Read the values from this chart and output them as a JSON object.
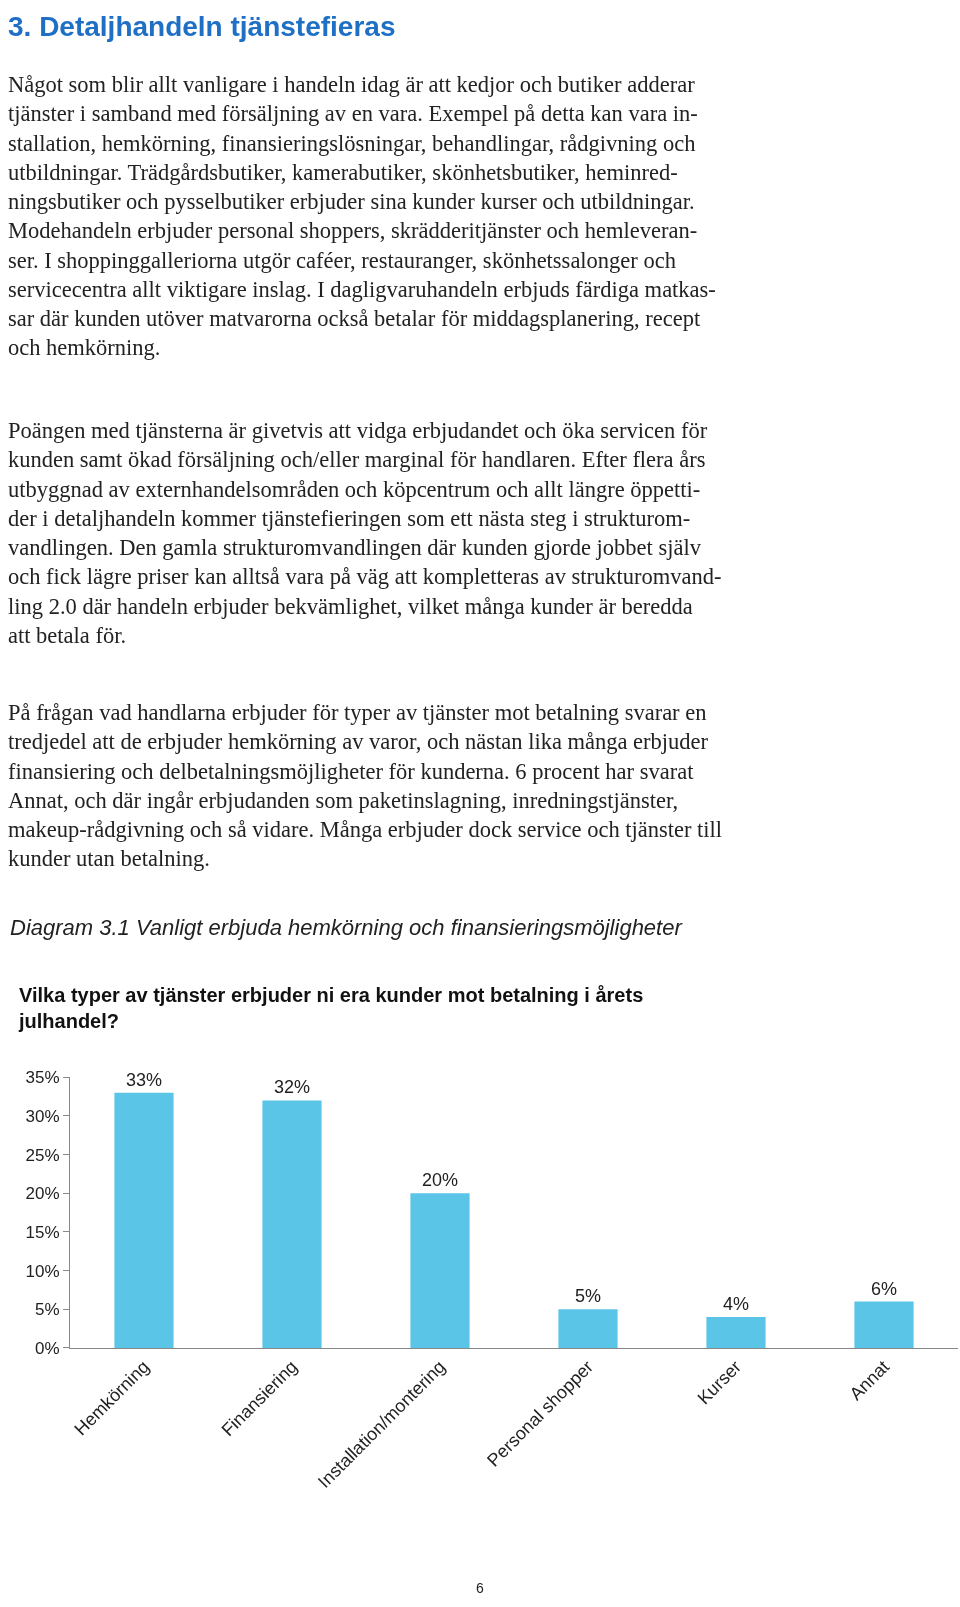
{
  "chart_data": {
    "type": "bar",
    "title": "Vilka typer av tjänster erbjuder ni era kunder mot betalning i årets julhandel?",
    "subtitle": "Diagram 3.1 Vanligt erbjuda hemkörning och finansieringsmöjligheter",
    "annotations": [
      "3. Detaljhandeln tjänstefieras",
      "Något som blir allt vanligare i handeln idag är att kedjor och butiker adderar\ntjänster i samband med försäljning av en vara. Exempel på detta kan vara in-\nstallation, hemkörning, finansieringslösningar, behandlingar, rådgivning och\nutbildningar. Trädgårdsbutiker, kamerabutiker, skönhetsbutiker, heminred-\nningsbutiker och pysselbutiker erbjuder sina kunder kurser och utbildningar.\nModehandeln erbjuder personal shoppers, skrädderitjänster och hemleveran-\nser. I shoppinggalleriorna utgör caféer, restauranger, skönhetssalonger och\nservicecentra allt viktigare inslag. I dagligvaruhandeln erbjuds färdiga matkas-\nsar där kunden utöver matvarorna också betalar för middagsplanering, recept\noch hemkörning.",
      "Poängen med tjänsterna är givetvis att vidga erbjudandet och öka servicen för\nkunden samt ökad försäljning och/eller marginal för handlaren. Efter flera års\nutbyggnad av externhandelsområden och köpcentrum och allt längre öppetti-\nder i detaljhandeln kommer tjänstefieringen som ett nästa steg i strukturom-\nvandlingen. Den gamla strukturomvandlingen där kunden gjorde jobbet själv\noch fick lägre priser kan alltså vara på väg att kompletteras av strukturomvand-\nling 2.0 där handeln erbjuder bekvämlighet, vilket många kunder är beredda\natt betala för.",
      "På frågan vad handlarna erbjuder för typer av tjänster mot betalning svarar en\ntredjedel att de erbjuder hemkörning av varor, och nästan lika många erbjuder\nfinansiering och delbetalningsmöjligheter för kunderna. 6 procent har svarat\nAnnat, och där ingår erbjudanden som paketinslagning, inredningstjänster,\nmakeup-rådgivning och så vidare. Många erbjuder dock service och tjänster till\nkunder utan betalning.",
      "6"
    ],
    "categories": [
      "Hemkörning",
      "Finansiering",
      "Installation/montering",
      "Personal shopper",
      "Kurser",
      "Annat"
    ],
    "values": [
      33,
      32,
      20,
      5,
      4,
      6
    ],
    "value_labels": [
      "33%",
      "32%",
      "20%",
      "5%",
      "4%",
      "6%"
    ],
    "color": "#5bc5e8",
    "ylim": [
      0,
      35
    ],
    "yticks": [
      {
        "value": 0,
        "label": "0%"
      },
      {
        "value": 5,
        "label": "5%"
      },
      {
        "value": 10,
        "label": "10%"
      },
      {
        "value": 15,
        "label": "15%"
      },
      {
        "value": 20,
        "label": "20%"
      },
      {
        "value": 25,
        "label": "25%"
      },
      {
        "value": 30,
        "label": "30%"
      },
      {
        "value": 35,
        "label": "35%"
      }
    ],
    "relative": false
  }
}
